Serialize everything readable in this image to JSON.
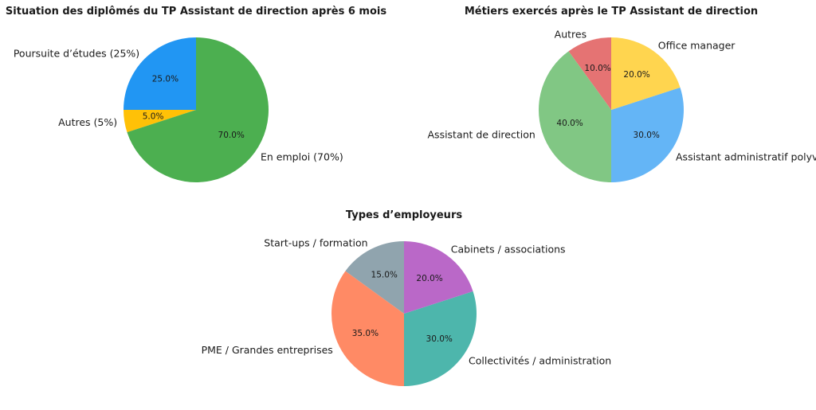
{
  "chart_data": [
    {
      "type": "pie",
      "title": "Situation des diplômés du TP Assistant de direction après 6 mois",
      "labels": [
        "Poursuite d’études (25%)",
        "Autres (5%)",
        "En emploi (70%)"
      ],
      "values": [
        25,
        5,
        70
      ],
      "pct_labels": [
        "25.0%",
        "5.0%",
        "70.0%"
      ],
      "colors": [
        "#2196F3",
        "#FFC107",
        "#4CAF50"
      ],
      "start_angle_deg": 90,
      "direction": "counterclockwise"
    },
    {
      "type": "pie",
      "title": "Métiers exercés après le TP Assistant de direction",
      "labels": [
        "Autres",
        "Assistant de direction",
        "Assistant administratif polyvalent",
        "Office manager"
      ],
      "values": [
        10,
        40,
        30,
        20
      ],
      "pct_labels": [
        "10.0%",
        "40.0%",
        "30.0%",
        "20.0%"
      ],
      "colors": [
        "#E57373",
        "#81C784",
        "#64B5F6",
        "#FFD54F"
      ],
      "start_angle_deg": 90,
      "direction": "counterclockwise"
    },
    {
      "type": "pie",
      "title": "Types d’employeurs",
      "labels": [
        "Start-ups / formation",
        "PME / Grandes entreprises",
        "Collectivités / administration",
        "Cabinets / associations"
      ],
      "values": [
        15,
        35,
        30,
        20
      ],
      "pct_labels": [
        "15.0%",
        "35.0%",
        "30.0%",
        "20.0%"
      ],
      "colors": [
        "#90A4AE",
        "#FF8A65",
        "#4DB6AC",
        "#BA68C8"
      ],
      "start_angle_deg": 90,
      "direction": "counterclockwise"
    }
  ]
}
